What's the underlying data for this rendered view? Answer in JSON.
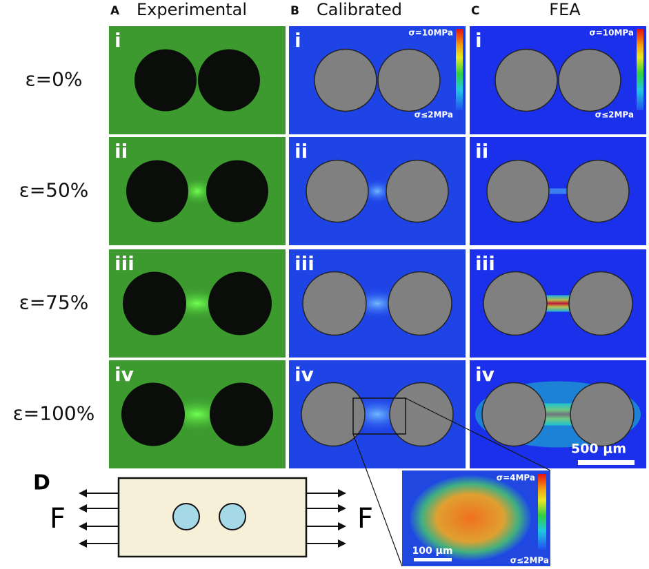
{
  "columns": [
    {
      "letter": "A",
      "title": "Experimental"
    },
    {
      "letter": "B",
      "title": "Calibrated"
    },
    {
      "letter": "C",
      "title": "FEA"
    }
  ],
  "rows": [
    {
      "label": "ε=0%",
      "numeral": "i"
    },
    {
      "label": "ε=50%",
      "numeral": "ii"
    },
    {
      "label": "ε=75%",
      "numeral": "iii"
    },
    {
      "label": "ε=100%",
      "numeral": "iv"
    }
  ],
  "colorbar": {
    "max": "σ=10MPa",
    "min": "σ≤2MPa"
  },
  "scale_bar": "500 μm",
  "panel_d": {
    "letter": "D",
    "force_left": "F",
    "force_right": "F"
  },
  "inset": {
    "max": "σ=4MPa",
    "min": "σ≤2MPa",
    "scale_bar": "100 μm"
  }
}
